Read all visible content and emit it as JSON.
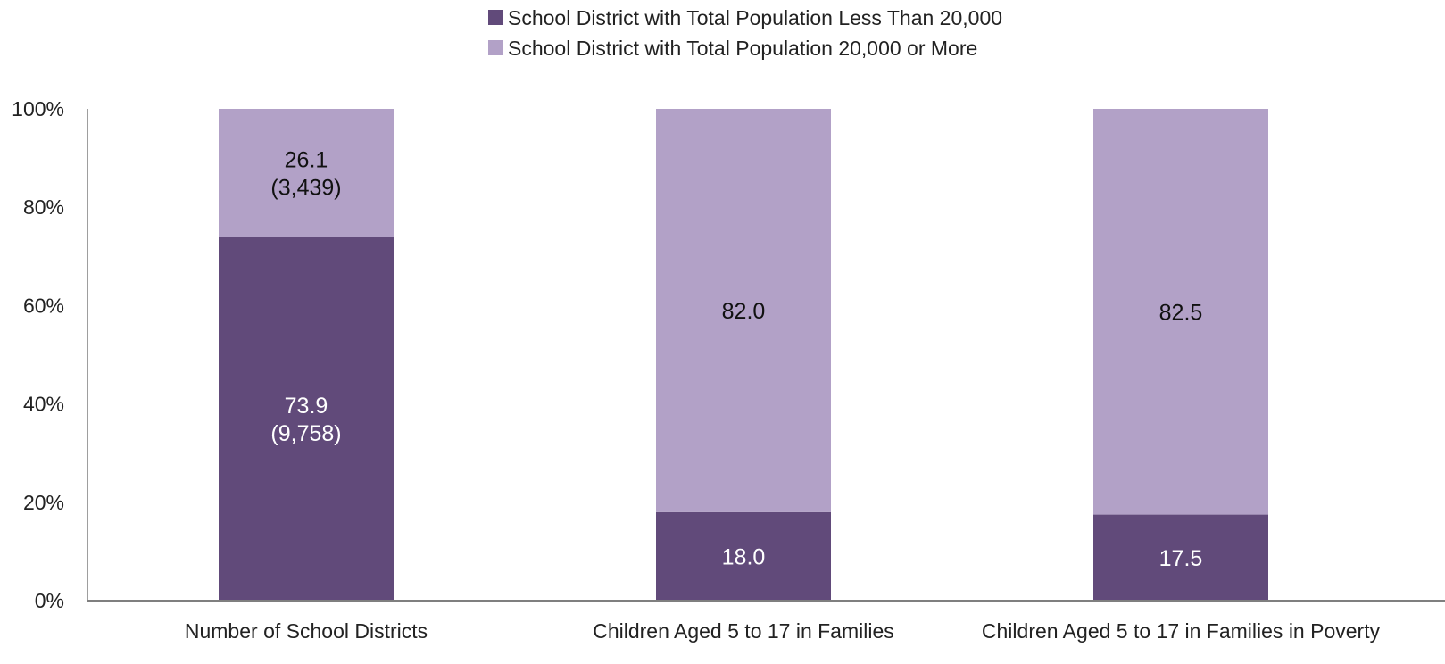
{
  "chart_data": {
    "type": "bar",
    "stacked": true,
    "categories": [
      "Number of School Districts",
      "Children Aged 5 to 17 in Families",
      "Children Aged 5 to 17 in Families in Poverty"
    ],
    "series": [
      {
        "name": "School District with Total Population Less Than 20,000",
        "color": "#614A7A",
        "label_color": "#ffffff",
        "values": [
          73.9,
          18.0,
          17.5
        ],
        "labels": [
          [
            "73.9",
            "(9,758)"
          ],
          [
            "18.0"
          ],
          [
            "17.5"
          ]
        ]
      },
      {
        "name": "School District with Total Population 20,000 or More",
        "color": "#B2A1C7",
        "label_color": "#111111",
        "values": [
          26.1,
          82.0,
          82.5
        ],
        "labels": [
          [
            "26.1",
            "(3,439)"
          ],
          [
            "82.0"
          ],
          [
            "82.5"
          ]
        ]
      }
    ],
    "yticks": [
      "0%",
      "20%",
      "40%",
      "60%",
      "80%",
      "100%"
    ],
    "ylim": [
      0,
      100
    ],
    "grid": false,
    "legend_position": "top-center",
    "axis_color": "#7F7F7F"
  }
}
